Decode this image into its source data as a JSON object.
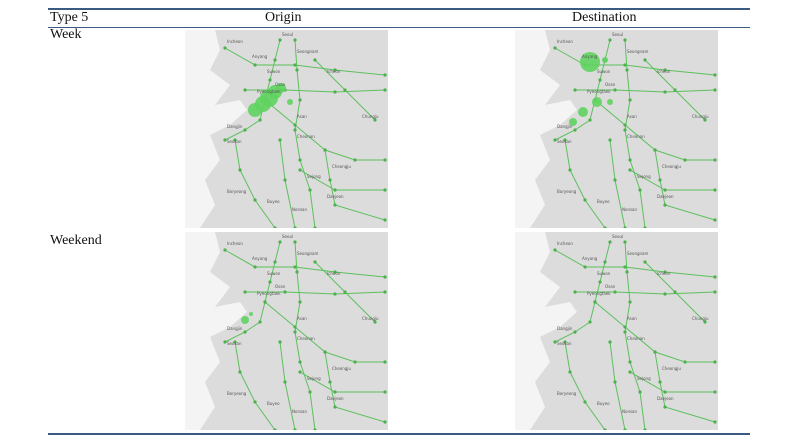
{
  "table": {
    "header": [
      "Type 5",
      "Origin",
      "Destination"
    ],
    "rows": [
      {
        "label": "Week"
      },
      {
        "label": "Weekend"
      }
    ]
  },
  "map_labels": [
    "Seoul",
    "Incheon",
    "Anyang",
    "Seongnam",
    "Suwon",
    "Osan",
    "Pyeongtaek",
    "Icheon",
    "Asan",
    "Dangjin",
    "Seosan",
    "Cheonan",
    "Chungju",
    "Cheongju",
    "Sejong",
    "Daejeon",
    "Boryeong",
    "Buyeo",
    "Nonsan"
  ]
}
